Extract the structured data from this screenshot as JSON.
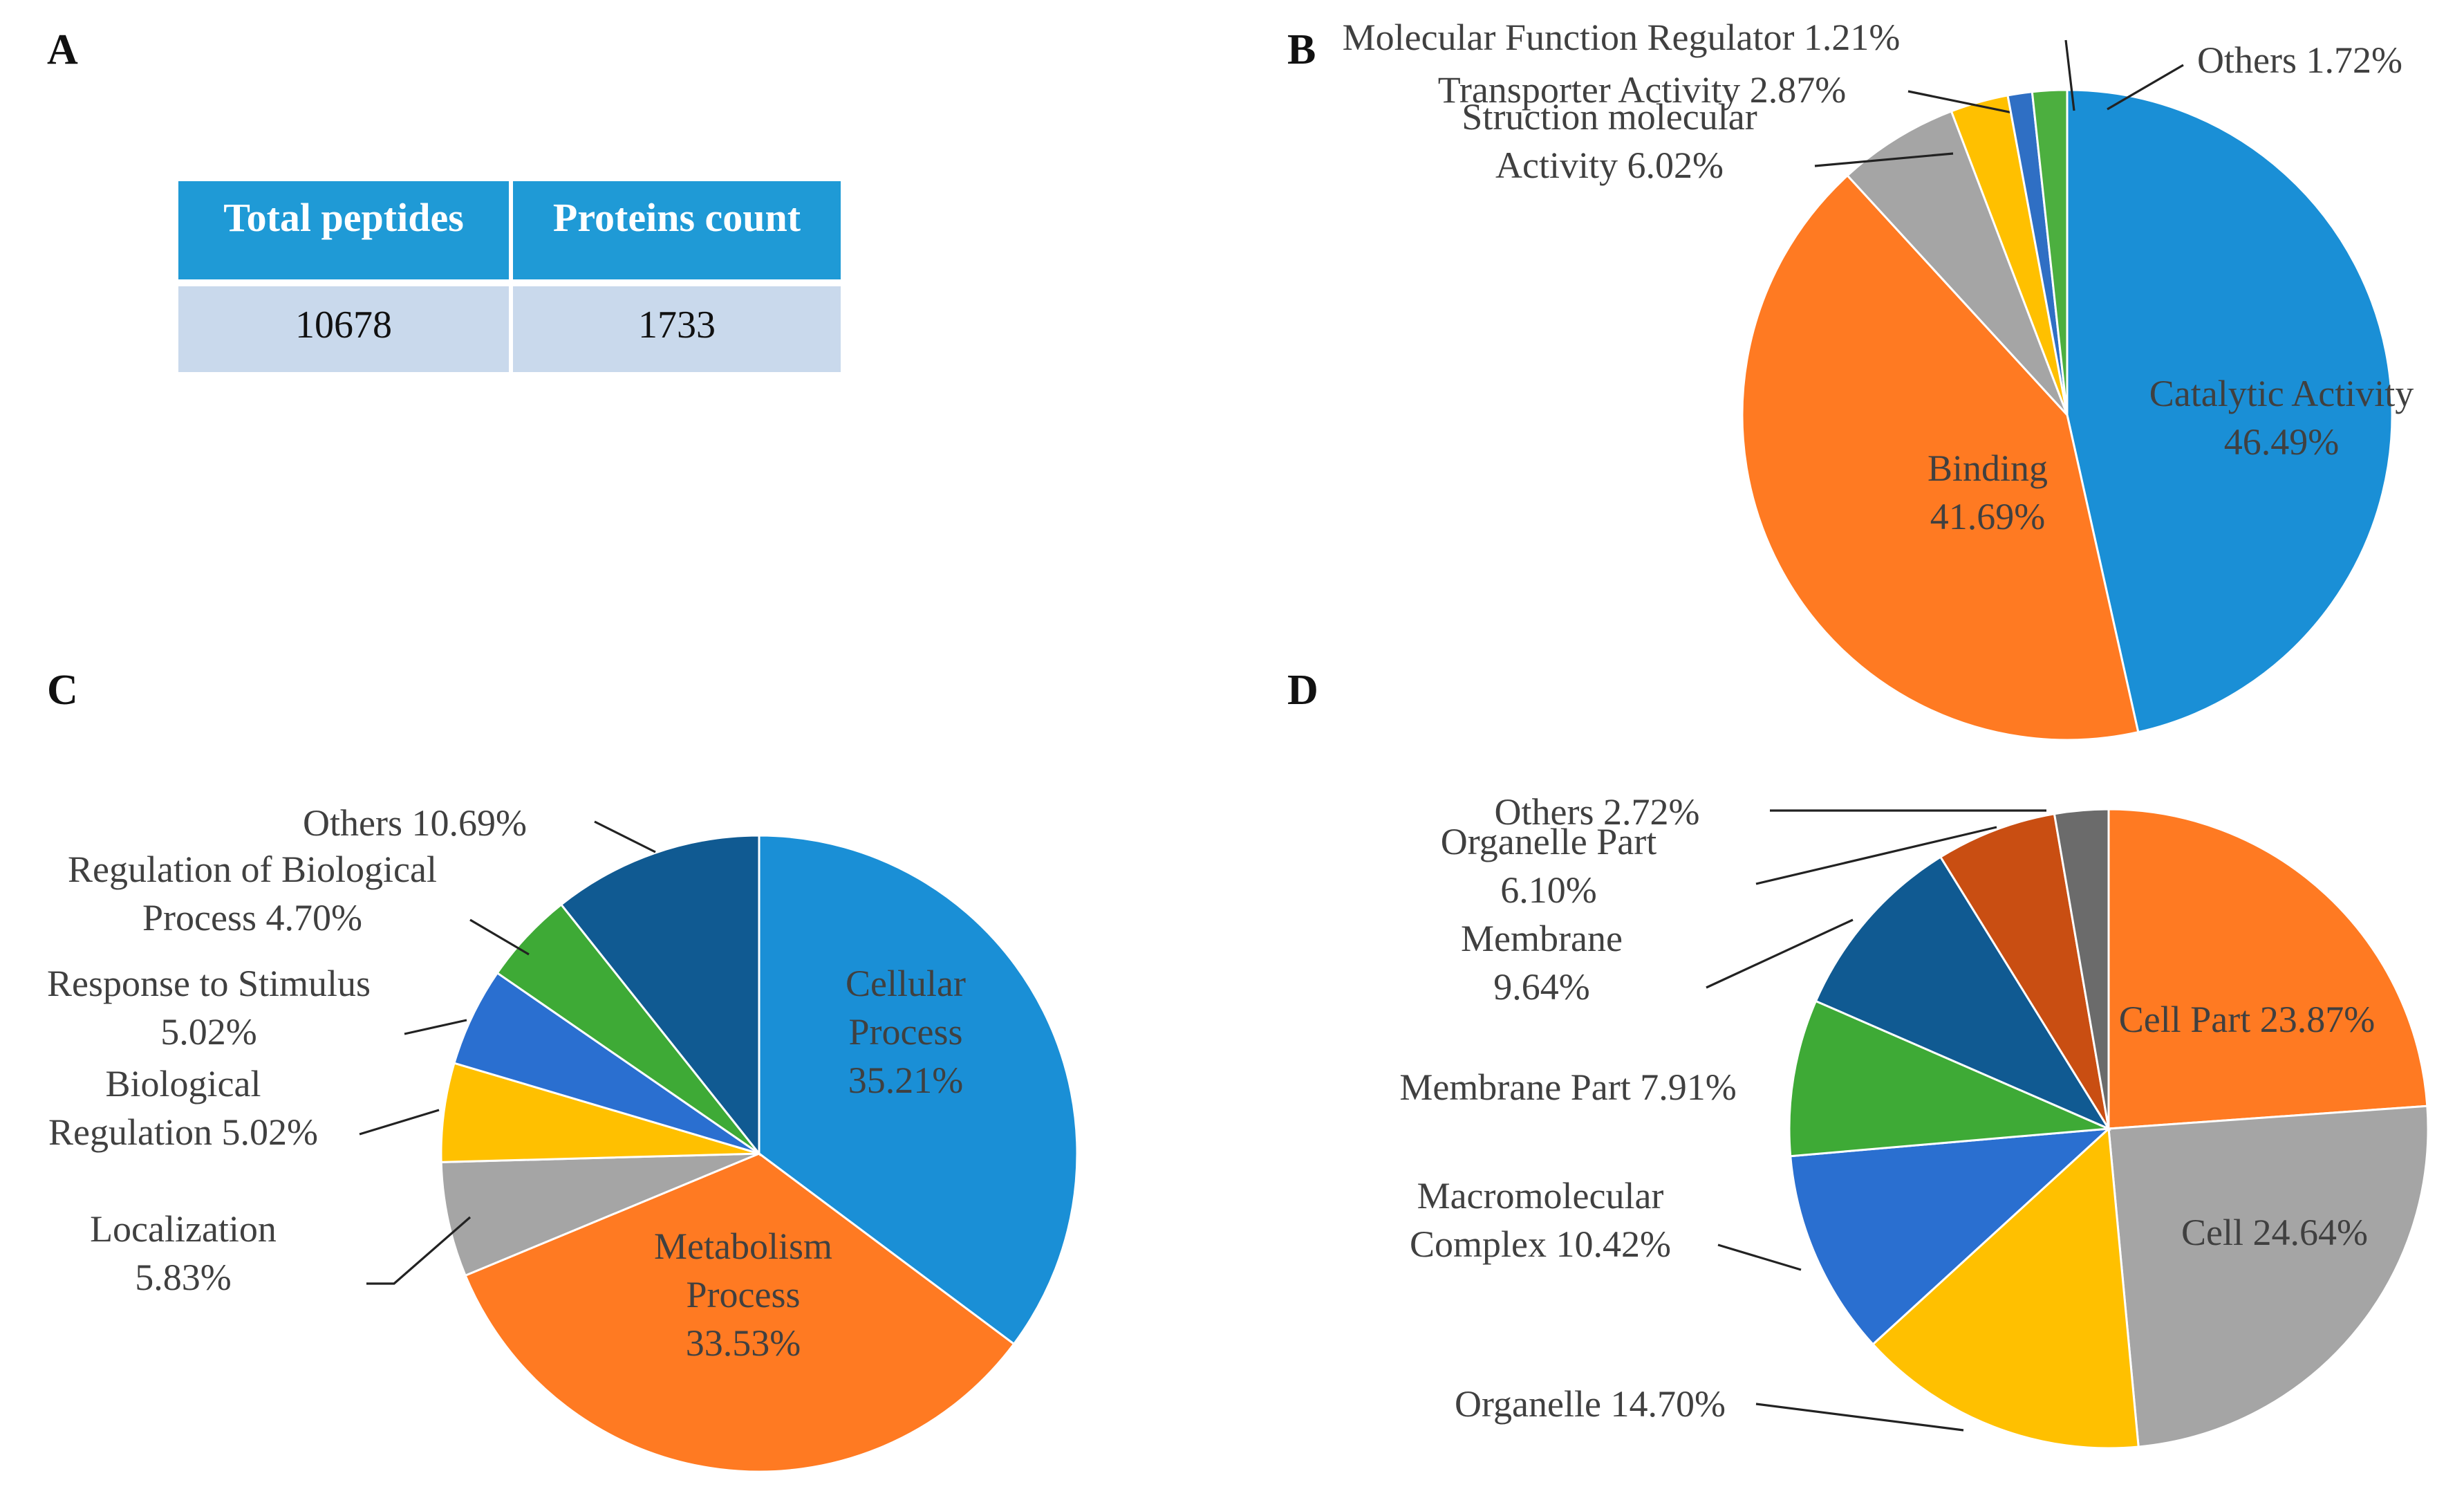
{
  "panels": {
    "a": "A",
    "b": "B",
    "c": "C",
    "d": "D"
  },
  "table": {
    "headers": [
      "Total peptides",
      "Proteins count"
    ],
    "rows": [
      [
        "10678",
        "1733"
      ]
    ],
    "colors": {
      "header": "#1f9ad6",
      "row": "#c9d9ec"
    }
  },
  "chart_data": [
    {
      "id": "B",
      "type": "pie",
      "title": "",
      "slices": [
        {
          "label": [
            "Catalytic Activity",
            "46.49%"
          ],
          "value": 46.49,
          "color": "#1a8fd6"
        },
        {
          "label": [
            "Binding",
            "41.69%"
          ],
          "value": 41.69,
          "color": "#ff7a22"
        },
        {
          "label": [
            "Struction molecular",
            "Activity 6.02%"
          ],
          "value": 6.02,
          "color": "#a5a5a5"
        },
        {
          "label": [
            "Transporter Activity 2.87%"
          ],
          "value": 2.87,
          "color": "#ffc000"
        },
        {
          "label": [
            "Molecular Function Regulator 1.21%"
          ],
          "value": 1.21,
          "color": "#2f6fc4"
        },
        {
          "label": [
            "Others 1.72%"
          ],
          "value": 1.72,
          "color": "#4caf3f"
        }
      ]
    },
    {
      "id": "C",
      "type": "pie",
      "title": "",
      "slices": [
        {
          "label": [
            "Cellular",
            "Process",
            "35.21%"
          ],
          "value": 35.21,
          "color": "#1a8fd6"
        },
        {
          "label": [
            "Metabolism",
            "Process",
            "33.53%"
          ],
          "value": 33.53,
          "color": "#ff7a22"
        },
        {
          "label": [
            "Localization",
            "5.83%"
          ],
          "value": 5.83,
          "color": "#a5a5a5"
        },
        {
          "label": [
            "Biological",
            "Regulation 5.02%"
          ],
          "value": 5.02,
          "color": "#ffc000"
        },
        {
          "label": [
            "Response to Stimulus",
            "5.02%"
          ],
          "value": 5.02,
          "color": "#2a6fd0"
        },
        {
          "label": [
            "Regulation of Biological",
            "Process 4.70%"
          ],
          "value": 4.7,
          "color": "#3eaa36"
        },
        {
          "label": [
            "Others 10.69%"
          ],
          "value": 10.69,
          "color": "#105a92"
        }
      ]
    },
    {
      "id": "D",
      "type": "pie",
      "title": "",
      "slices": [
        {
          "label": [
            "Cell Part 23.87%"
          ],
          "value": 23.87,
          "color": "#ff7a22"
        },
        {
          "label": [
            "Cell 24.64%"
          ],
          "value": 24.64,
          "color": "#a5a5a5"
        },
        {
          "label": [
            "Organelle 14.70%"
          ],
          "value": 14.7,
          "color": "#ffc000"
        },
        {
          "label": [
            "Macromolecular",
            "Complex 10.42%"
          ],
          "value": 10.42,
          "color": "#2a6fd0"
        },
        {
          "label": [
            "Membrane Part 7.91%"
          ],
          "value": 7.91,
          "color": "#3eaa36"
        },
        {
          "label": [
            "Membrane",
            "9.64%"
          ],
          "value": 9.64,
          "color": "#105a92"
        },
        {
          "label": [
            "Organelle Part",
            "6.10%"
          ],
          "value": 6.1,
          "color": "#c94e12"
        },
        {
          "label": [
            "Others 2.72%"
          ],
          "value": 2.72,
          "color": "#6b6b6b"
        }
      ]
    }
  ]
}
